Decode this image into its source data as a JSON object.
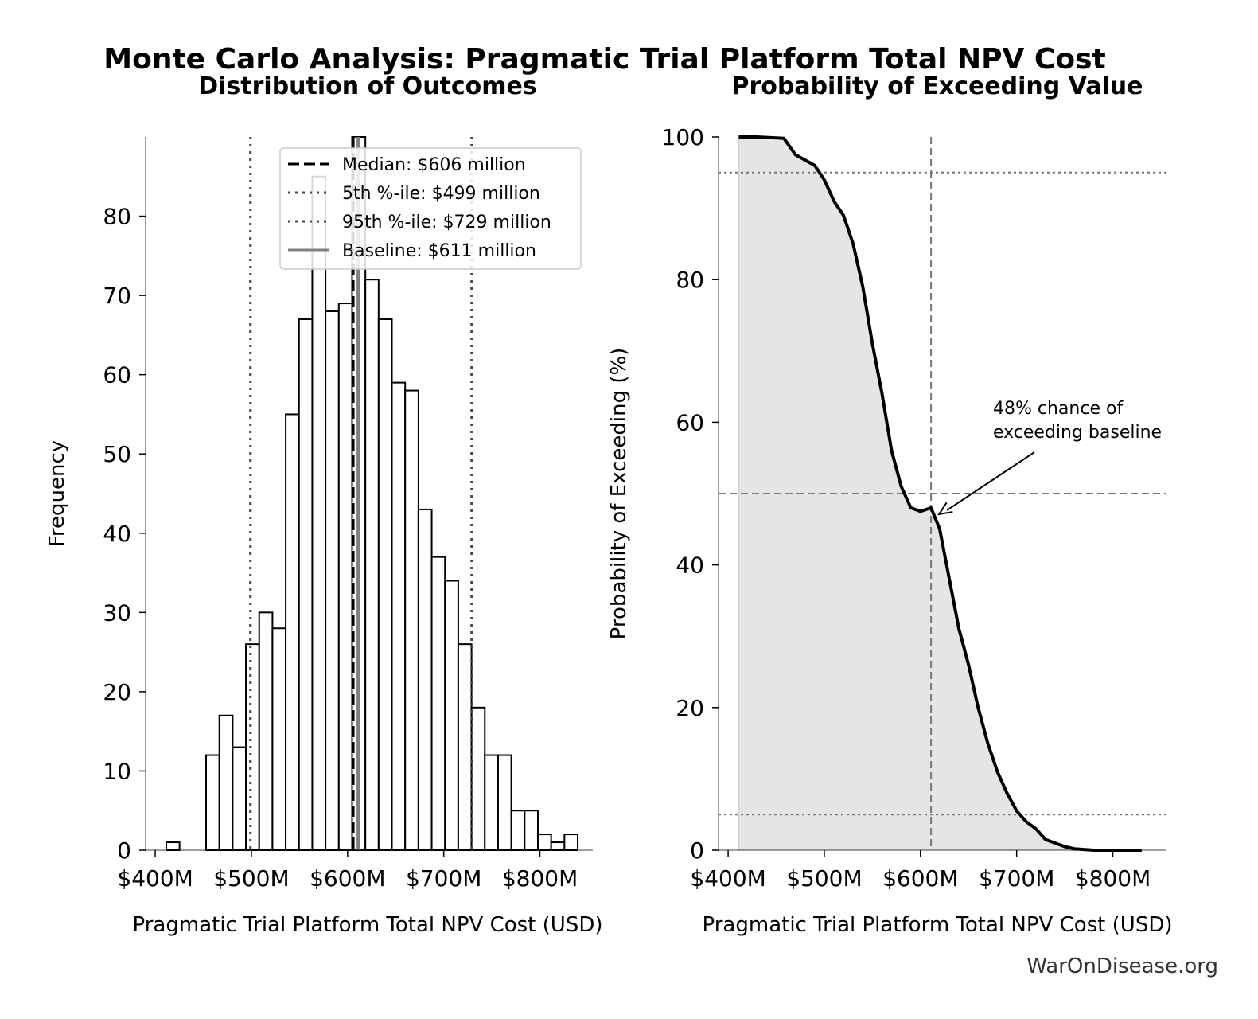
{
  "figure": {
    "title": "Monte Carlo Analysis: Pragmatic Trial Platform Total NPV Cost",
    "watermark": "WarOnDisease.org"
  },
  "chart_data": [
    {
      "type": "bar",
      "title": "Distribution of Outcomes",
      "xlabel": "Pragmatic Trial Platform Total NPV Cost (USD)",
      "ylabel": "Frequency",
      "xlim": [
        390,
        855
      ],
      "ylim": [
        0,
        90
      ],
      "xticks": [
        400,
        500,
        600,
        700,
        800
      ],
      "xtick_labels": [
        "$400M",
        "$500M",
        "$600M",
        "$700M",
        "$800M"
      ],
      "yticks": [
        0,
        10,
        20,
        30,
        40,
        50,
        60,
        70,
        80
      ],
      "yticks_labels": [
        "0",
        "10",
        "20",
        "30",
        "40",
        "50",
        "60",
        "70",
        "80"
      ],
      "bin_start": 411.5,
      "bin_width": 13.8,
      "counts": [
        1,
        0,
        0,
        12,
        17,
        13,
        26,
        30,
        28,
        55,
        67,
        85,
        68,
        69,
        90,
        72,
        67,
        59,
        58,
        43,
        37,
        34,
        26,
        18,
        12,
        12,
        5,
        5,
        2,
        1,
        2
      ],
      "fill": "#ffffff",
      "edgecolor": "#000000",
      "reference_lines": [
        {
          "label": "Median: $606 million",
          "value": 606,
          "style": "dashed",
          "color": "#000000"
        },
        {
          "label": "5th %-ile: $499 million",
          "value": 499,
          "style": "dotted",
          "color": "#444444"
        },
        {
          "label": "95th %-ile: $729 million",
          "value": 729,
          "style": "dotted",
          "color": "#444444"
        },
        {
          "label": "Baseline: $611 million",
          "value": 611,
          "style": "solid",
          "color": "#7f7f7f"
        }
      ],
      "legend_position": "top-right",
      "grid": false
    },
    {
      "type": "area",
      "title": "Probability of Exceeding Value",
      "xlabel": "Pragmatic Trial Platform Total NPV Cost (USD)",
      "ylabel": "Probability of Exceeding (%)",
      "xlim": [
        390,
        855
      ],
      "ylim": [
        0,
        100
      ],
      "xticks": [
        400,
        500,
        600,
        700,
        800
      ],
      "xtick_labels": [
        "$400M",
        "$500M",
        "$600M",
        "$700M",
        "$800M"
      ],
      "yticks": [
        0,
        20,
        40,
        60,
        80,
        100
      ],
      "ytick_labels": [
        "0",
        "20",
        "40",
        "60",
        "80",
        "100"
      ],
      "x": [
        411,
        430,
        458,
        470,
        490,
        500,
        510,
        520,
        530,
        540,
        550,
        560,
        570,
        580,
        590,
        600,
        611,
        620,
        630,
        640,
        650,
        660,
        670,
        680,
        690,
        700,
        710,
        720,
        730,
        740,
        750,
        760,
        770,
        780,
        790,
        800,
        810,
        820,
        830
      ],
      "y": [
        100,
        100,
        99.8,
        97.5,
        96,
        94,
        91,
        89,
        85,
        79,
        71,
        64,
        56,
        51,
        48,
        47.5,
        48,
        45,
        38,
        31,
        26,
        20,
        15,
        11,
        8,
        5.5,
        4,
        3,
        1.5,
        1,
        0.5,
        0.2,
        0.1,
        0,
        0,
        0,
        0,
        0,
        0
      ],
      "line_color": "#000000",
      "fill_color": "#e5e5e5",
      "baseline_x": 611,
      "h_lines": [
        {
          "y": 95,
          "style": "dotted"
        },
        {
          "y": 50,
          "style": "dashed"
        },
        {
          "y": 5,
          "style": "dotted"
        }
      ],
      "annotation": {
        "text_line1": "48% chance of",
        "text_line2": "exceeding baseline",
        "point_x": 611,
        "point_y": 48
      },
      "grid": false
    }
  ]
}
